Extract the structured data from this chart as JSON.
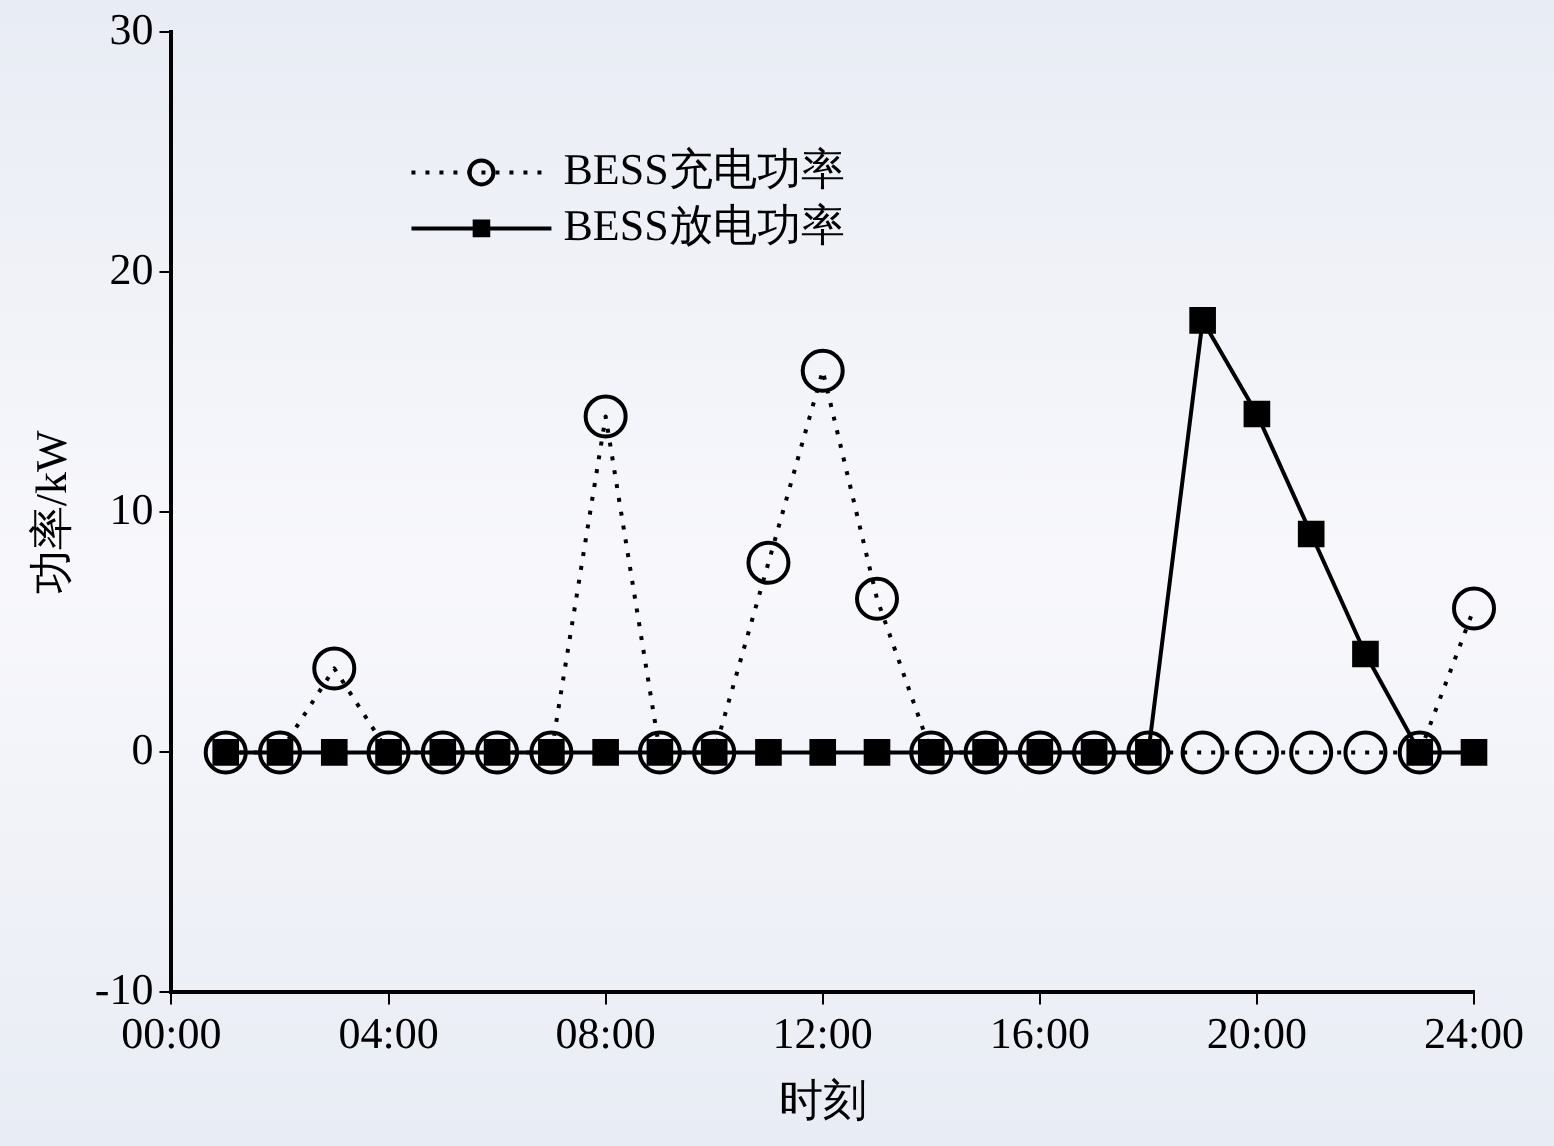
{
  "chart_data": {
    "type": "line",
    "xlabel": "时刻",
    "ylabel": "功率/kW",
    "x": [
      1,
      2,
      3,
      4,
      5,
      6,
      7,
      8,
      9,
      10,
      11,
      12,
      13,
      14,
      15,
      16,
      17,
      18,
      19,
      20,
      21,
      22,
      23,
      24
    ],
    "series": [
      {
        "name": "BESS充电功率",
        "color": "#000000",
        "marker": "circle",
        "line_style": "dotted",
        "values": [
          0,
          0,
          3.5,
          0,
          0,
          0,
          0,
          14.0,
          0,
          0,
          7.9,
          15.9,
          6.4,
          0,
          0,
          0,
          0,
          0,
          0,
          0,
          0,
          0,
          0,
          6.0
        ]
      },
      {
        "name": "BESS放电功率",
        "color": "#000000",
        "marker": "square",
        "line_style": "solid",
        "values": [
          0,
          0,
          0,
          0,
          0,
          0,
          0,
          0,
          0,
          0,
          0,
          0,
          0,
          0,
          0,
          0,
          0,
          0,
          18.0,
          14.1,
          9.1,
          4.1,
          0,
          0
        ]
      }
    ],
    "xlim": [
      0,
      24
    ],
    "xticks": [
      {
        "value": 0,
        "label": "00:00"
      },
      {
        "value": 4,
        "label": "04:00"
      },
      {
        "value": 8,
        "label": "08:00"
      },
      {
        "value": 12,
        "label": "12:00"
      },
      {
        "value": 16,
        "label": "16:00"
      },
      {
        "value": 20,
        "label": "20:00"
      },
      {
        "value": 24,
        "label": "24:00"
      }
    ],
    "ylim": [
      -10,
      30
    ],
    "yticks": [
      -10,
      0,
      10,
      20,
      30
    ],
    "grid": false,
    "legend": "top left"
  }
}
